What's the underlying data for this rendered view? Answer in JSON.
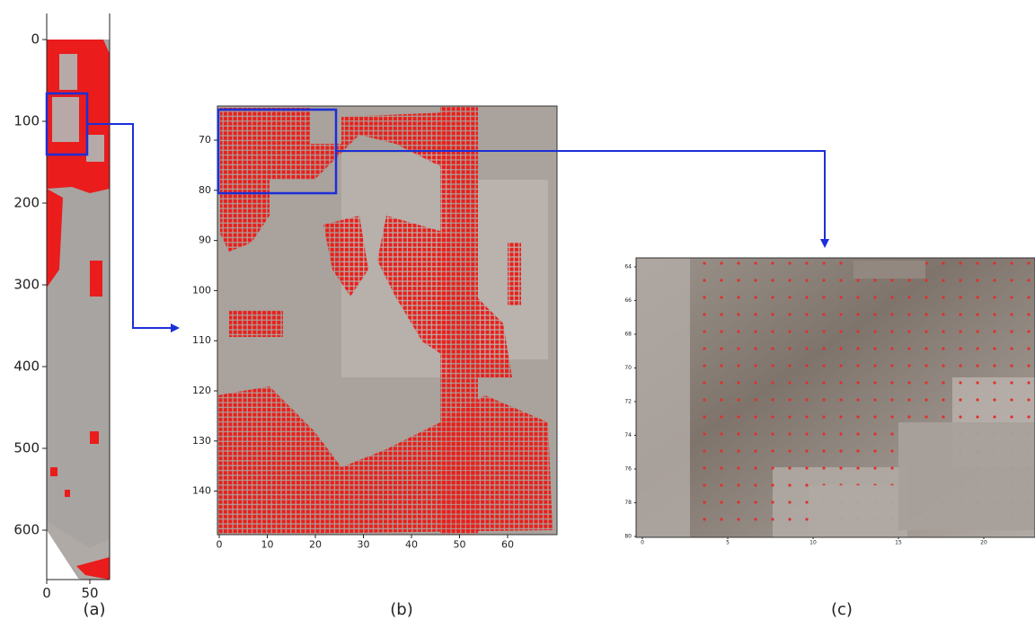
{
  "panels": [
    {
      "caption": "(a)",
      "yticks": [
        "0",
        "100",
        "200",
        "300",
        "400",
        "500",
        "600"
      ],
      "xticks": [
        "0",
        "50"
      ]
    },
    {
      "caption": "(b)",
      "yticks": [
        "70",
        "80",
        "90",
        "100",
        "110",
        "120",
        "130",
        "140"
      ],
      "xticks": [
        "0",
        "10",
        "20",
        "30",
        "40",
        "50",
        "60"
      ]
    },
    {
      "caption": "(c)",
      "yticks": [
        "64",
        "66",
        "68",
        "70",
        "72",
        "74",
        "76",
        "78",
        "80"
      ],
      "xticks": [
        "0",
        "5",
        "10",
        "15",
        "20"
      ]
    }
  ]
}
